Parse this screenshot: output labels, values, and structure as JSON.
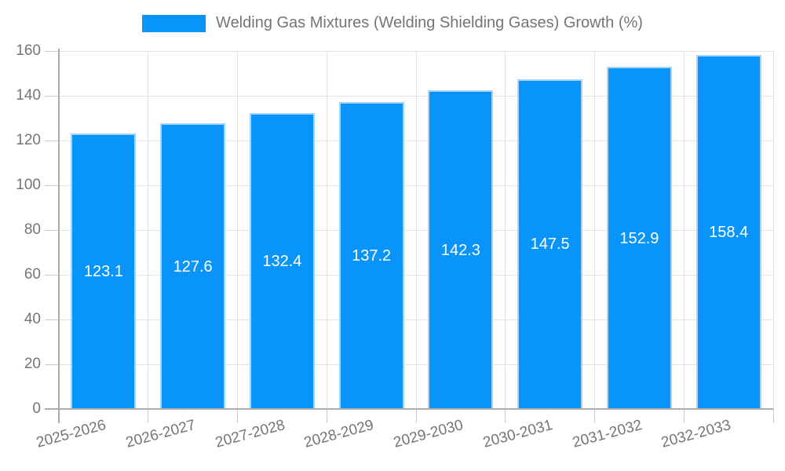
{
  "legend": {
    "label": "Welding Gas Mixtures (Welding Shielding Gases) Growth (%)",
    "swatch_color": "#0994fa"
  },
  "chart_data": {
    "type": "bar",
    "title": "Welding Gas Mixtures (Welding Shielding Gases) Growth (%)",
    "categories": [
      "2025-2026",
      "2026-2027",
      "2027-2028",
      "2028-2029",
      "2029-2030",
      "2030-2031",
      "2031-2032",
      "2032-2033"
    ],
    "series": [
      {
        "name": "Welding Gas Mixtures (Welding Shielding Gases) Growth (%)",
        "values": [
          123.1,
          127.6,
          132.4,
          137.2,
          142.3,
          147.5,
          152.9,
          158.4
        ]
      }
    ],
    "value_labels": [
      "123.1",
      "127.6",
      "132.4",
      "137.2",
      "142.3",
      "147.5",
      "152.9",
      "158.4"
    ],
    "xlabel": "",
    "ylabel": "",
    "ylim": [
      0,
      160
    ],
    "ytick_step": 20,
    "ytick_labels": [
      "0",
      "20",
      "40",
      "60",
      "80",
      "100",
      "120",
      "140",
      "160"
    ],
    "grid": true,
    "legend_position": "top-center",
    "x_label_rotation_deg": -15,
    "colors": {
      "bar_fill": "#0994fa",
      "bar_border": "#a9d4f8",
      "value_label": "#ffffff",
      "grid_line": "#e2e2e2",
      "axis_line": "#ababab",
      "tick_line": "#c9c9c9",
      "axis_text": "#757575"
    }
  }
}
